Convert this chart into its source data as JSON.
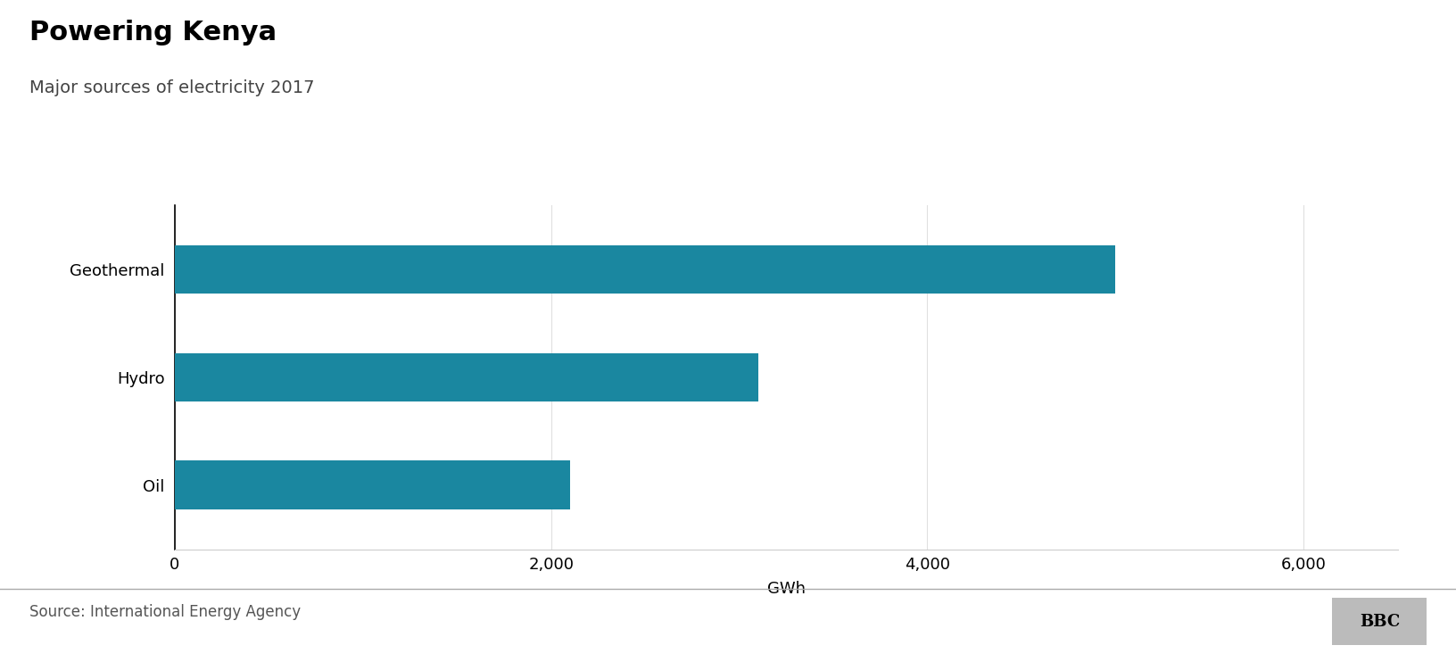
{
  "title": "Powering Kenya",
  "subtitle": "Major sources of electricity 2017",
  "categories": [
    "Geothermal",
    "Hydro",
    "Oil"
  ],
  "values": [
    5000,
    3100,
    2100
  ],
  "bar_color": "#1a87a0",
  "xlim": [
    0,
    6500
  ],
  "xticks": [
    0,
    2000,
    4000,
    6000
  ],
  "xlabel": "GWh",
  "source": "Source: International Energy Agency",
  "bbc_label": "BBC",
  "background_color": "#ffffff",
  "title_fontsize": 22,
  "subtitle_fontsize": 14,
  "axis_fontsize": 13,
  "source_fontsize": 12,
  "bar_height": 0.45
}
